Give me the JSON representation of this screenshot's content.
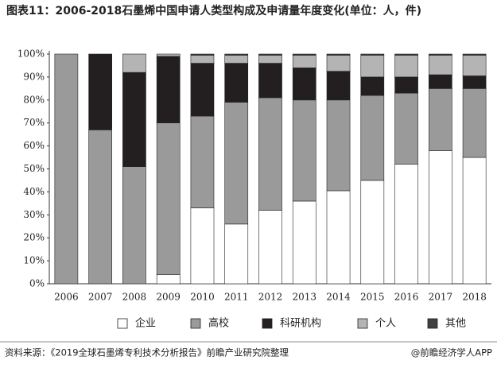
{
  "chart_data": {
    "type": "stacked-bar-100",
    "title": "图表11：2006-2018石墨烯中国申请人类型构成及申请量年度变化(单位：人，件)",
    "categories": [
      "2006",
      "2007",
      "2008",
      "2009",
      "2010",
      "2011",
      "2012",
      "2013",
      "2014",
      "2015",
      "2016",
      "2017",
      "2018"
    ],
    "series": [
      {
        "name": "企业",
        "color": "#ffffff",
        "values": [
          0,
          0,
          0,
          4,
          33,
          26,
          32,
          36,
          40.5,
          45,
          52,
          58,
          55
        ]
      },
      {
        "name": "高校",
        "color": "#9a9a9a",
        "values": [
          100,
          67,
          51,
          66,
          40,
          53,
          49,
          44,
          39.5,
          37,
          31,
          27,
          30
        ]
      },
      {
        "name": "科研机构",
        "color": "#231f20",
        "values": [
          0,
          33,
          41,
          29,
          23,
          17,
          15,
          14,
          12.5,
          8,
          7,
          6,
          5.5
        ]
      },
      {
        "name": "个人",
        "color": "#b4b4b4",
        "values": [
          0,
          0,
          8,
          1,
          3.5,
          3.5,
          3.5,
          5.5,
          7,
          9.5,
          9.5,
          8.5,
          9
        ]
      },
      {
        "name": "其他",
        "color": "#404040",
        "values": [
          0,
          0,
          0,
          0,
          0.5,
          0.5,
          0.5,
          0.5,
          0.5,
          0.5,
          0.5,
          0.5,
          0.5
        ]
      }
    ],
    "ylim": [
      0,
      100
    ],
    "yticks": [
      {
        "value": 0,
        "label": "0%"
      },
      {
        "value": 10,
        "label": "10%"
      },
      {
        "value": 20,
        "label": "20%"
      },
      {
        "value": 30,
        "label": "30%"
      },
      {
        "value": 40,
        "label": "40%"
      },
      {
        "value": 50,
        "label": "50%"
      },
      {
        "value": 60,
        "label": "60%"
      },
      {
        "value": 70,
        "label": "70%"
      },
      {
        "value": 80,
        "label": "80%"
      },
      {
        "value": 90,
        "label": "90%"
      },
      {
        "value": 100,
        "label": "100%"
      }
    ],
    "grid": false
  },
  "footer": {
    "source": "资料来源：《2019全球石墨烯专利技术分析报告》前瞻产业研究院整理",
    "brand": "@前瞻经济学人APP"
  }
}
